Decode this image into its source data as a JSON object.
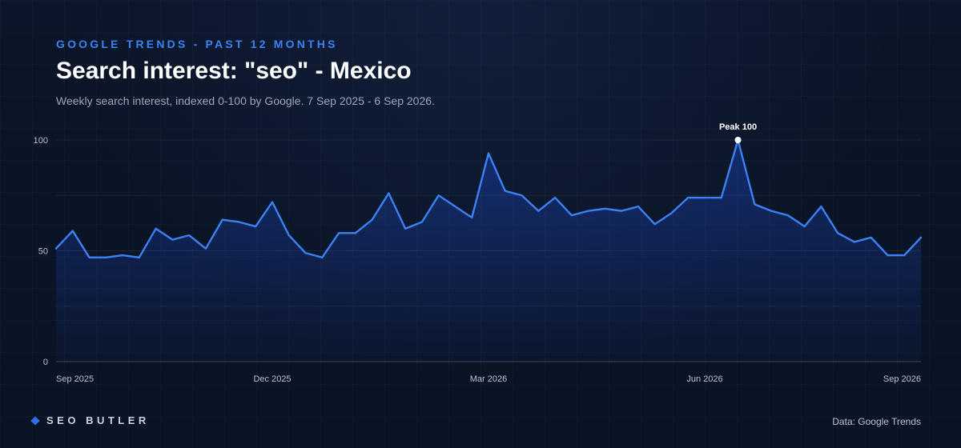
{
  "header": {
    "eyebrow": "GOOGLE TRENDS - PAST 12 MONTHS",
    "title": "Search interest: \"seo\" - Mexico",
    "subtitle": "Weekly search interest, indexed 0-100 by Google. 7 Sep 2025 - 6 Sep 2026."
  },
  "footer": {
    "brand": "SEO BUTLER",
    "source": "Data: Google Trends"
  },
  "colors": {
    "accent": "#3b82f6",
    "line": "#3b82f6",
    "background": "#0b1426"
  },
  "chart_data": {
    "type": "area",
    "title": "Search interest: \"seo\" - Mexico",
    "xlabel": "",
    "ylabel": "",
    "ylim": [
      0,
      100
    ],
    "yticks": [
      0,
      50,
      100
    ],
    "grid": true,
    "x_ticks": [
      {
        "label": "Sep 2025",
        "week_index": 0
      },
      {
        "label": "Dec 2025",
        "week_index": 13
      },
      {
        "label": "Mar 2026",
        "week_index": 26
      },
      {
        "label": "Jun 2026",
        "week_index": 39
      },
      {
        "label": "Sep 2026",
        "week_index": 52
      }
    ],
    "series": [
      {
        "values": [
          51,
          59,
          47,
          47,
          48,
          47,
          60,
          55,
          57,
          51,
          64,
          63,
          61,
          72,
          57,
          49,
          47,
          58,
          58,
          64,
          76,
          60,
          63,
          75,
          70,
          65,
          94,
          77,
          75,
          68,
          74,
          66,
          68,
          69,
          68,
          70,
          62,
          67,
          74,
          74,
          74,
          100,
          71,
          68,
          66,
          61,
          70,
          58,
          54,
          56,
          48,
          48,
          56
        ]
      }
    ],
    "annotations": [
      {
        "text": "Peak 100",
        "week_index": 41,
        "value": 100
      }
    ]
  }
}
